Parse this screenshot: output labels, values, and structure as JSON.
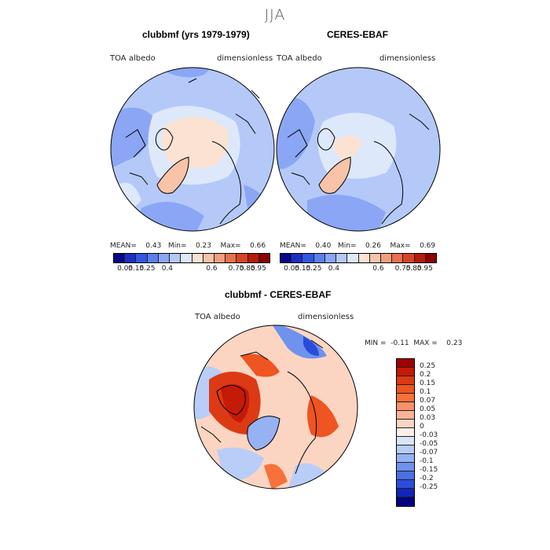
{
  "season": "JJA",
  "top_left": {
    "title": "clubbmf (yrs 1979-1979)",
    "variable": "TOA albedo",
    "units": "dimensionless",
    "stats": {
      "mean_label": "MEAN=",
      "mean": "0.43",
      "min_label": "Min=",
      "min": "0.23",
      "max_label": "Max=",
      "max": "0.66"
    }
  },
  "top_right": {
    "title": "CERES-EBAF",
    "variable": "TOA albedo",
    "units": "dimensionless",
    "stats": {
      "mean_label": "MEAN=",
      "mean": "0.40",
      "min_label": "Min=",
      "min": "0.26",
      "max_label": "Max=",
      "max": "0.69"
    }
  },
  "abs_colorbar": {
    "colors": [
      "#08088a",
      "#1c2fc2",
      "#3058e0",
      "#5b7fee",
      "#8aa6f5",
      "#b4c9f8",
      "#dde8fb",
      "#fbe2d2",
      "#f8c3a8",
      "#f39e7c",
      "#e8714f",
      "#d64527",
      "#b51c0e",
      "#8b0000"
    ],
    "ticks": [
      "0.05",
      "0.15",
      "0.25",
      "0.4",
      "0.6",
      "0.75",
      "0.85",
      "0.95"
    ]
  },
  "bottom": {
    "title": "clubbmf - CERES-EBAF",
    "variable": "TOA albedo",
    "units": "dimensionless",
    "min_label": "MIN =",
    "min": "-0.11",
    "max_label": "MAX =",
    "max": "0.23"
  },
  "diff_colorbar": {
    "colors": [
      "#a00000",
      "#c41a08",
      "#dc3a14",
      "#ee5520",
      "#f8703a",
      "#f8906a",
      "#f9b396",
      "#fcd5c2",
      "#fef0e8",
      "#d8e6fb",
      "#b8cdf7",
      "#95b2f3",
      "#6e92ee",
      "#4a6fe6",
      "#2a4cd8",
      "#1126b8",
      "#02037e"
    ],
    "labels": [
      "0.25",
      "0.2",
      "0.15",
      "0.1",
      "0.07",
      "0.05",
      "0.03",
      "0",
      "-0.03",
      "-0.05",
      "-0.07",
      "-0.1",
      "-0.15",
      "-0.2",
      "-0.25"
    ]
  }
}
